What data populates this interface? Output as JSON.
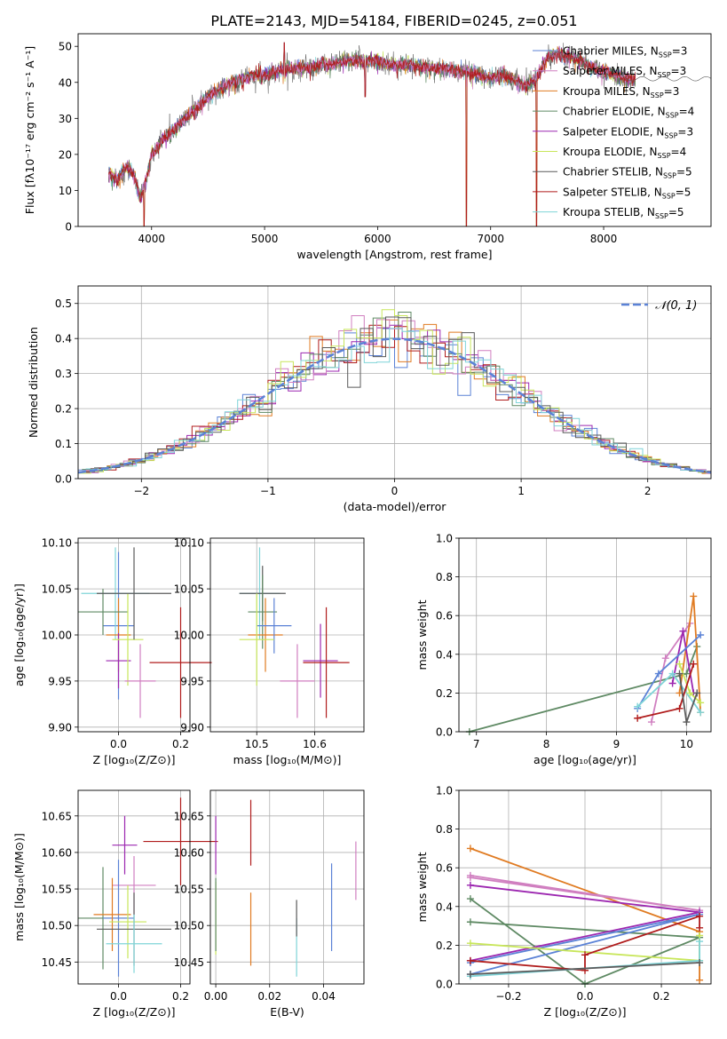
{
  "figure": {
    "title": "PLATE=2143, MJD=54184, FIBERID=0245, z=0.051",
    "colors": [
      "#5b82d6",
      "#e07b22",
      "#9c27b0",
      "#b01c1c",
      "#5f8a64",
      "#d07fc0",
      "#c8e65a",
      "#5a5a5a",
      "#7fd4d8"
    ]
  },
  "chart_data": [
    {
      "id": "spectrum",
      "type": "line",
      "xlabel": "wavelength [Angstrom, rest frame]",
      "ylabel": "Flux [fλ10⁻¹⁷ erg cm⁻² s⁻¹ A⁻¹]",
      "xlim": [
        3350,
        8950
      ],
      "ylim": [
        0,
        53.5
      ],
      "xticks": [
        4000,
        5000,
        6000,
        7000,
        8000
      ],
      "yticks": [
        0,
        10,
        20,
        30,
        40,
        50
      ],
      "grid": false,
      "legend_position": "top-right",
      "legend": [
        {
          "label": "Chabrier MILES, N",
          "sub": "SSP",
          "suffix": "=3",
          "color": "#5b82d6"
        },
        {
          "label": "Salpeter MILES, N",
          "sub": "SSP",
          "suffix": "=3",
          "color": "#d07fc0"
        },
        {
          "label": "Kroupa MILES, N",
          "sub": "SSP",
          "suffix": "=3",
          "color": "#e07b22"
        },
        {
          "label": "Chabrier ELODIE, N",
          "sub": "SSP",
          "suffix": "=4",
          "color": "#5f8a64"
        },
        {
          "label": "Salpeter ELODIE, N",
          "sub": "SSP",
          "suffix": "=3",
          "color": "#9c27b0"
        },
        {
          "label": "Kroupa ELODIE, N",
          "sub": "SSP",
          "suffix": "=4",
          "color": "#c8e65a"
        },
        {
          "label": "Chabrier STELIB, N",
          "sub": "SSP",
          "suffix": "=5",
          "color": "#5a5a5a"
        },
        {
          "label": "Salpeter STELIB, N",
          "sub": "SSP",
          "suffix": "=5",
          "color": "#b01c1c"
        },
        {
          "label": "Kroupa STELIB, N",
          "sub": "SSP",
          "suffix": "=5",
          "color": "#7fd4d8"
        }
      ],
      "continuum": [
        [
          3620,
          15
        ],
        [
          3700,
          13
        ],
        [
          3780,
          17
        ],
        [
          3850,
          14
        ],
        [
          3900,
          8
        ],
        [
          3960,
          14
        ],
        [
          4000,
          20
        ],
        [
          4100,
          24
        ],
        [
          4200,
          27
        ],
        [
          4300,
          30
        ],
        [
          4400,
          33
        ],
        [
          4500,
          36
        ],
        [
          4600,
          38
        ],
        [
          4700,
          40
        ],
        [
          4800,
          41
        ],
        [
          4900,
          42
        ],
        [
          5000,
          42
        ],
        [
          5100,
          43
        ],
        [
          5200,
          44
        ],
        [
          5300,
          44
        ],
        [
          5400,
          44
        ],
        [
          5500,
          45
        ],
        [
          5600,
          45
        ],
        [
          5700,
          46
        ],
        [
          5800,
          46
        ],
        [
          5900,
          46
        ],
        [
          6000,
          46
        ],
        [
          6100,
          45
        ],
        [
          6200,
          45
        ],
        [
          6300,
          45
        ],
        [
          6400,
          44
        ],
        [
          6500,
          44
        ],
        [
          6600,
          44
        ],
        [
          6700,
          43
        ],
        [
          6800,
          43
        ],
        [
          6900,
          42
        ],
        [
          7000,
          41
        ],
        [
          7100,
          42
        ],
        [
          7200,
          41
        ],
        [
          7300,
          39
        ],
        [
          7400,
          41
        ],
        [
          7500,
          47
        ],
        [
          7600,
          48
        ],
        [
          7700,
          47
        ],
        [
          7800,
          46
        ],
        [
          7900,
          44
        ],
        [
          8000,
          43
        ],
        [
          8100,
          42
        ],
        [
          8200,
          41
        ],
        [
          8280,
          41
        ]
      ],
      "dips": [
        [
          3935,
          0
        ],
        [
          5175,
          51
        ],
        [
          5890,
          36
        ],
        [
          6785,
          0
        ],
        [
          7405,
          0
        ]
      ]
    },
    {
      "id": "residuals",
      "type": "histogram",
      "xlabel": "(data-model)/error",
      "ylabel": "Normed distribution",
      "xlim": [
        -2.5,
        2.5
      ],
      "ylim": [
        0,
        0.55
      ],
      "xticks": [
        -2,
        -1,
        0,
        1,
        2
      ],
      "yticks": [
        0.0,
        0.1,
        0.2,
        0.3,
        0.4,
        0.5
      ],
      "grid": true,
      "legend_position": "top-right",
      "legend": [
        {
          "label": "𝒩(0, 1)",
          "color": "#5b82d6",
          "style": "dashed"
        }
      ],
      "bin_width": 0.1
    },
    {
      "id": "age_vs_Z",
      "type": "errorbar",
      "xlabel": "Z [log₁₀(Z/Z⊙)]",
      "ylabel": "age  [log₁₀(age/yr)]",
      "xlim": [
        -0.13,
        0.23
      ],
      "ylim": [
        9.895,
        10.105
      ],
      "xticks": [
        0.0,
        0.2
      ],
      "yticks": [
        9.9,
        9.95,
        10.0,
        10.05,
        10.1
      ],
      "grid": true,
      "points": [
        {
          "x": 0.0,
          "xerr": 0.05,
          "y": 10.01,
          "yerr": 0.08,
          "color": "#5b82d6"
        },
        {
          "x": -0.01,
          "xerr": 0.11,
          "y": 10.045,
          "yerr": 0.05,
          "color": "#7fd4d8"
        },
        {
          "x": 0.0,
          "xerr": 0.04,
          "y": 10.0,
          "yerr": 0.04,
          "color": "#e07b22"
        },
        {
          "x": -0.05,
          "xerr": 0.08,
          "y": 10.025,
          "yerr": 0.025,
          "color": "#5f8a64"
        },
        {
          "x": 0.0,
          "xerr": 0.04,
          "y": 9.972,
          "yerr": 0.03,
          "color": "#9c27b0"
        },
        {
          "x": 0.03,
          "xerr": 0.05,
          "y": 9.995,
          "yerr": 0.05,
          "color": "#c8e65a"
        },
        {
          "x": 0.05,
          "xerr": 0.12,
          "y": 10.045,
          "yerr": 0.05,
          "color": "#5a5a5a"
        },
        {
          "x": 0.2,
          "xerr": 0.1,
          "y": 9.97,
          "yerr": 0.06,
          "color": "#b01c1c"
        },
        {
          "x": 0.07,
          "xerr": 0.05,
          "y": 9.95,
          "yerr": 0.04,
          "color": "#d07fc0"
        }
      ]
    },
    {
      "id": "age_vs_mass",
      "type": "errorbar",
      "xlabel": "mass [log₁₀(M/M⊙)]",
      "ylabel": "",
      "xlim": [
        10.42,
        10.685
      ],
      "ylim": [
        9.895,
        10.105
      ],
      "xticks": [
        10.5,
        10.6
      ],
      "yticks": [
        9.9,
        9.95,
        10.0,
        10.05,
        10.1
      ],
      "grid": true,
      "points": [
        {
          "x": 10.505,
          "xerr": 0.035,
          "y": 10.045,
          "yerr": 0.05,
          "color": "#7fd4d8"
        },
        {
          "x": 10.51,
          "xerr": 0.04,
          "y": 10.045,
          "yerr": 0.03,
          "color": "#5a5a5a"
        },
        {
          "x": 10.51,
          "xerr": 0.025,
          "y": 10.025,
          "yerr": 0.04,
          "color": "#5f8a64"
        },
        {
          "x": 10.515,
          "xerr": 0.03,
          "y": 10.0,
          "yerr": 0.04,
          "color": "#e07b22"
        },
        {
          "x": 10.53,
          "xerr": 0.03,
          "y": 10.01,
          "yerr": 0.03,
          "color": "#5b82d6"
        },
        {
          "x": 10.5,
          "xerr": 0.03,
          "y": 9.995,
          "yerr": 0.05,
          "color": "#c8e65a"
        },
        {
          "x": 10.57,
          "xerr": 0.03,
          "y": 9.95,
          "yerr": 0.04,
          "color": "#d07fc0"
        },
        {
          "x": 10.61,
          "xerr": 0.03,
          "y": 9.972,
          "yerr": 0.04,
          "color": "#9c27b0"
        },
        {
          "x": 10.62,
          "xerr": 0.04,
          "y": 9.97,
          "yerr": 0.06,
          "color": "#b01c1c"
        }
      ]
    },
    {
      "id": "massweight_vs_age",
      "type": "line",
      "xlabel": "age  [log₁₀(age/yr)]",
      "ylabel": "mass weight",
      "xlim": [
        6.75,
        10.35
      ],
      "ylim": [
        0,
        1.0
      ],
      "xticks": [
        7,
        8,
        9,
        10
      ],
      "yticks": [
        0.0,
        0.2,
        0.4,
        0.6,
        0.8,
        1.0
      ],
      "grid": true,
      "series": [
        {
          "color": "#5f8a64",
          "x": [
            6.9,
            10.0,
            10.15
          ],
          "y": [
            0.0,
            0.3,
            0.44
          ]
        },
        {
          "color": "#d07fc0",
          "x": [
            9.5,
            9.7,
            10.05
          ],
          "y": [
            0.05,
            0.38,
            0.56
          ]
        },
        {
          "color": "#e07b22",
          "x": [
            9.9,
            10.1,
            10.2
          ],
          "y": [
            0.2,
            0.7,
            0.1
          ]
        },
        {
          "color": "#9c27b0",
          "x": [
            9.8,
            9.95,
            10.1
          ],
          "y": [
            0.25,
            0.52,
            0.2
          ]
        },
        {
          "color": "#5b82d6",
          "x": [
            9.3,
            9.6,
            10.2
          ],
          "y": [
            0.12,
            0.3,
            0.5
          ]
        },
        {
          "color": "#7fd4d8",
          "x": [
            9.3,
            9.8,
            10.2
          ],
          "y": [
            0.13,
            0.3,
            0.1
          ]
        },
        {
          "color": "#c8e65a",
          "x": [
            9.9,
            10.05,
            10.2
          ],
          "y": [
            0.35,
            0.2,
            0.15
          ]
        },
        {
          "color": "#b01c1c",
          "x": [
            9.3,
            9.9,
            10.1
          ],
          "y": [
            0.07,
            0.12,
            0.35
          ]
        },
        {
          "color": "#5a5a5a",
          "x": [
            9.9,
            10.0,
            10.15
          ],
          "y": [
            0.3,
            0.05,
            0.2
          ]
        }
      ]
    },
    {
      "id": "mass_vs_Z",
      "type": "errorbar",
      "xlabel": "Z [log₁₀(Z/Z⊙)]",
      "ylabel": "mass [log₁₀(M/M⊙)]",
      "xlim": [
        -0.13,
        0.23
      ],
      "ylim": [
        10.42,
        10.685
      ],
      "xticks": [
        0.0,
        0.2
      ],
      "yticks": [
        10.45,
        10.5,
        10.55,
        10.6,
        10.65
      ],
      "grid": true,
      "points": [
        {
          "x": 0.02,
          "xerr": 0.04,
          "y": 10.61,
          "yerr": 0.04,
          "color": "#9c27b0"
        },
        {
          "x": 0.2,
          "xerr": 0.12,
          "y": 10.615,
          "yerr": 0.06,
          "color": "#b01c1c"
        },
        {
          "x": 0.05,
          "xerr": 0.07,
          "y": 10.555,
          "yerr": 0.04,
          "color": "#d07fc0"
        },
        {
          "x": -0.05,
          "xerr": 0.08,
          "y": 10.51,
          "yerr": 0.07,
          "color": "#5f8a64"
        },
        {
          "x": 0.0,
          "xerr": 0.05,
          "y": 10.51,
          "yerr": 0.08,
          "color": "#5b82d6"
        },
        {
          "x": -0.02,
          "xerr": 0.06,
          "y": 10.515,
          "yerr": 0.05,
          "color": "#e07b22"
        },
        {
          "x": 0.03,
          "xerr": 0.06,
          "y": 10.505,
          "yerr": 0.05,
          "color": "#c8e65a"
        },
        {
          "x": 0.05,
          "xerr": 0.12,
          "y": 10.495,
          "yerr": 0.05,
          "color": "#5a5a5a"
        },
        {
          "x": 0.05,
          "xerr": 0.09,
          "y": 10.475,
          "yerr": 0.04,
          "color": "#7fd4d8"
        }
      ]
    },
    {
      "id": "mass_vs_EBV",
      "type": "errorbar",
      "xlabel": "E(B-V)",
      "ylabel": "",
      "xlim": [
        -0.002,
        0.055
      ],
      "ylim": [
        10.42,
        10.685
      ],
      "xticks": [
        0.0,
        0.02,
        0.04
      ],
      "yticks": [
        10.45,
        10.5,
        10.55,
        10.6,
        10.65
      ],
      "grid": true,
      "points": [
        {
          "x": 0.0,
          "xerr": 0,
          "y": 10.61,
          "yerr": 0.04,
          "color": "#9c27b0"
        },
        {
          "x": 0.0,
          "xerr": 0,
          "y": 10.51,
          "yerr": 0.05,
          "color": "#c8e65a"
        },
        {
          "x": 0.0,
          "xerr": 0,
          "y": 10.515,
          "yerr": 0.05,
          "color": "#5f8a64"
        },
        {
          "x": 0.013,
          "xerr": 0,
          "y": 10.495,
          "yerr": 0.05,
          "color": "#e07b22"
        },
        {
          "x": 0.013,
          "xerr": 0,
          "y": 10.627,
          "yerr": 0.045,
          "color": "#b01c1c"
        },
        {
          "x": 0.03,
          "xerr": 0,
          "y": 10.47,
          "yerr": 0.04,
          "color": "#7fd4d8"
        },
        {
          "x": 0.03,
          "xerr": 0,
          "y": 10.51,
          "yerr": 0.025,
          "color": "#5a5a5a"
        },
        {
          "x": 0.043,
          "xerr": 0,
          "y": 10.525,
          "yerr": 0.06,
          "color": "#5b82d6"
        },
        {
          "x": 0.052,
          "xerr": 0,
          "y": 10.575,
          "yerr": 0.04,
          "color": "#d07fc0"
        }
      ]
    },
    {
      "id": "massweight_vs_Z",
      "type": "line",
      "xlabel": "Z [log₁₀(Z/Z⊙)]",
      "ylabel": "mass weight",
      "xlim": [
        -0.33,
        0.33
      ],
      "ylim": [
        0,
        1.0
      ],
      "xticks": [
        -0.2,
        0.0,
        0.2
      ],
      "yticks": [
        0.0,
        0.2,
        0.4,
        0.6,
        0.8,
        1.0
      ],
      "grid": true,
      "series": [
        {
          "color": "#e07b22",
          "x": [
            -0.3,
            0.3,
            0.3
          ],
          "y": [
            0.7,
            0.27,
            0.02
          ]
        },
        {
          "color": "#d07fc0",
          "x": [
            -0.3,
            0.3,
            -0.3
          ],
          "y": [
            0.56,
            0.38,
            0.55
          ]
        },
        {
          "color": "#5f8a64",
          "x": [
            -0.3,
            0.0,
            0.3,
            -0.3
          ],
          "y": [
            0.44,
            0.0,
            0.24,
            0.32
          ]
        },
        {
          "color": "#9c27b0",
          "x": [
            -0.3,
            0.3,
            -0.3
          ],
          "y": [
            0.12,
            0.37,
            0.51
          ]
        },
        {
          "color": "#5b82d6",
          "x": [
            -0.3,
            0.3,
            -0.3
          ],
          "y": [
            0.11,
            0.36,
            0.05
          ]
        },
        {
          "color": "#c8e65a",
          "x": [
            -0.3,
            0.3,
            0.3
          ],
          "y": [
            0.21,
            0.12,
            0.25
          ]
        },
        {
          "color": "#b01c1c",
          "x": [
            -0.3,
            0.0,
            0.0,
            0.3,
            0.3
          ],
          "y": [
            0.12,
            0.07,
            0.15,
            0.35,
            0.29
          ]
        },
        {
          "color": "#7fd4d8",
          "x": [
            -0.3,
            0.3,
            0.3
          ],
          "y": [
            0.04,
            0.12,
            0.22
          ]
        },
        {
          "color": "#5a5a5a",
          "x": [
            -0.3,
            0.3
          ],
          "y": [
            0.05,
            0.11
          ]
        }
      ]
    }
  ]
}
